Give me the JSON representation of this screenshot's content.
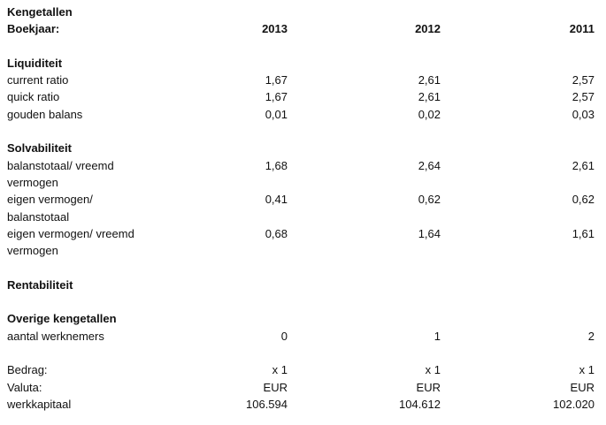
{
  "title": "Kengetallen",
  "header": {
    "label": "Boekjaar:",
    "years": [
      "2013",
      "2012",
      "2011"
    ]
  },
  "sections": [
    {
      "title": "Liquiditeit",
      "rows": [
        {
          "label": "current ratio",
          "values": [
            "1,67",
            "2,61",
            "2,57"
          ]
        },
        {
          "label": "quick ratio",
          "values": [
            "1,67",
            "2,61",
            "2,57"
          ]
        },
        {
          "label": "gouden balans",
          "values": [
            "0,01",
            "0,02",
            "0,03"
          ]
        }
      ]
    },
    {
      "title": "Solvabiliteit",
      "rows": [
        {
          "label": "balanstotaal/ vreemd vermogen",
          "values": [
            "1,68",
            "2,64",
            "2,61"
          ]
        },
        {
          "label": "eigen vermogen/ balanstotaal",
          "values": [
            "0,41",
            "0,62",
            "0,62"
          ]
        },
        {
          "label": "eigen vermogen/ vreemd vermogen",
          "values": [
            "0,68",
            "1,64",
            "1,61"
          ]
        }
      ]
    },
    {
      "title": "Rentabiliteit",
      "rows": []
    },
    {
      "title": "Overige kengetallen",
      "rows": [
        {
          "label": "aantal werknemers",
          "values": [
            "0",
            "1",
            "2"
          ]
        }
      ]
    }
  ],
  "footer": {
    "rows": [
      {
        "label": "Bedrag:",
        "values": [
          "x 1",
          "x 1",
          "x 1"
        ]
      },
      {
        "label": "Valuta:",
        "values": [
          "EUR",
          "EUR",
          "EUR"
        ]
      },
      {
        "label": "werkkapitaal",
        "values": [
          "106.594",
          "104.612",
          "102.020"
        ]
      }
    ]
  }
}
